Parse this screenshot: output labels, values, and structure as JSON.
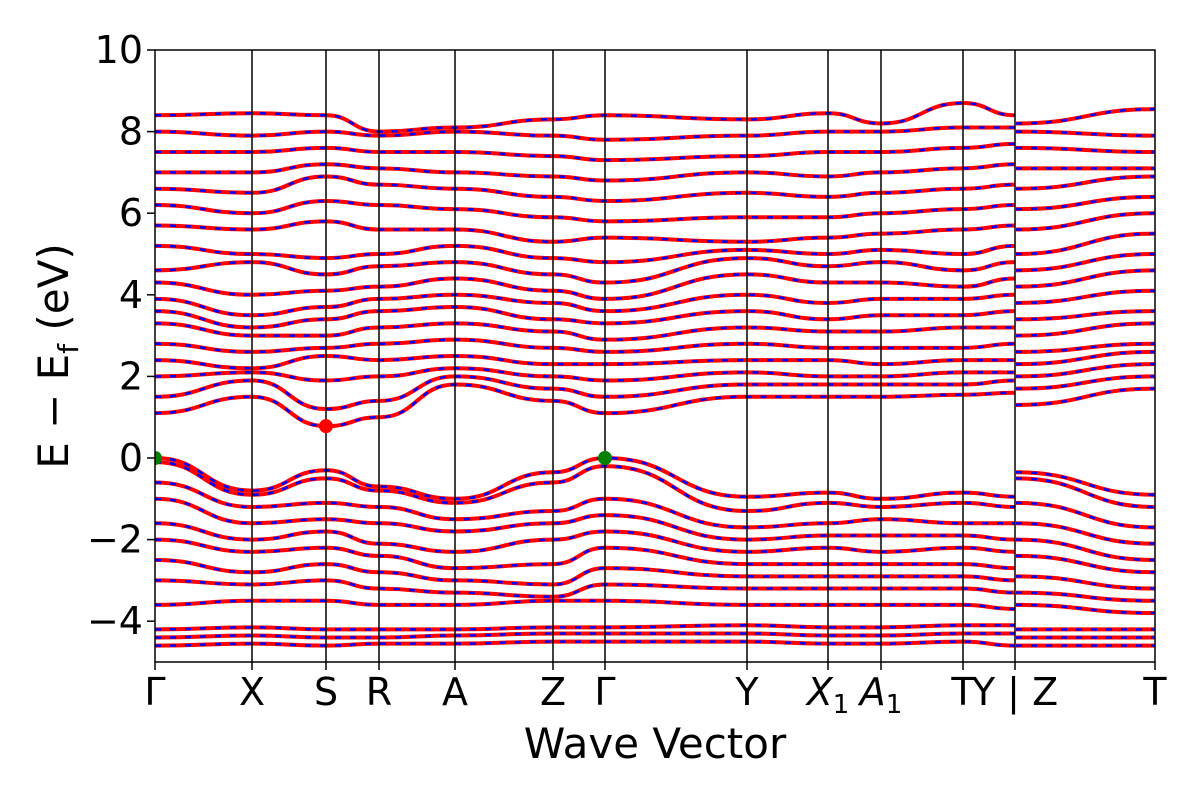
{
  "chart_data": {
    "type": "line",
    "xlabel": "Wave Vector",
    "ylabel": {
      "main": "E − E",
      "sub": "f",
      "unit": " (eV)"
    },
    "ylim": [
      -5,
      10
    ],
    "yticks": [
      {
        "value": 10,
        "label": "10"
      },
      {
        "value": 8,
        "label": "8"
      },
      {
        "value": 6,
        "label": "6"
      },
      {
        "value": 4,
        "label": "4"
      },
      {
        "value": 2,
        "label": "2"
      },
      {
        "value": 0,
        "label": "0"
      },
      {
        "value": -2,
        "label": "−2"
      },
      {
        "value": -4,
        "label": "−4"
      }
    ],
    "xlim": [
      0,
      10
    ],
    "kpoints": [
      {
        "x": 0.0,
        "label": "Γ"
      },
      {
        "x": 0.97,
        "label": "X"
      },
      {
        "x": 1.71,
        "label": "S"
      },
      {
        "x": 2.24,
        "label": "R"
      },
      {
        "x": 3.0,
        "label": "A"
      },
      {
        "x": 3.98,
        "label": "Z"
      },
      {
        "x": 4.5,
        "label": "Γ"
      },
      {
        "x": 5.92,
        "label": "Y"
      },
      {
        "x": 6.73,
        "label": "X",
        "sub": "1"
      },
      {
        "x": 7.26,
        "label": "A",
        "sub": "1"
      },
      {
        "x": 8.08,
        "label": "T"
      },
      {
        "x": 8.6,
        "label": "Y | Z"
      },
      {
        "x": 10.0,
        "label": "T"
      }
    ],
    "colors": {
      "spin_up": "#ff0000",
      "spin_down": "#0000ff",
      "extrema": "#008000",
      "cbm": "#ff0000"
    },
    "extrema": [
      {
        "name": "vbm-1",
        "x": 0.0,
        "y": 0.0,
        "color": "#008000"
      },
      {
        "name": "vbm-2",
        "x": 4.5,
        "y": 0.0,
        "color": "#008000"
      },
      {
        "name": "cbm",
        "x": 1.71,
        "y": 0.78,
        "color": "#ff0000"
      }
    ],
    "series": [
      {
        "x": [
          0,
          0.97,
          1.71,
          2.24,
          3.0,
          3.98,
          4.5,
          5.92,
          6.73,
          7.26,
          8.08,
          8.6,
          8.61,
          10
        ],
        "values": [
          0.0,
          -0.8,
          -0.3,
          -0.7,
          -1.0,
          -0.35,
          0.0,
          -0.95,
          -0.85,
          -1.0,
          -0.85,
          -0.95,
          -0.35,
          -0.9
        ]
      },
      {
        "x": [
          0,
          0.97,
          1.71,
          2.24,
          3.0,
          3.98,
          4.5,
          5.92,
          6.73,
          7.26,
          8.08,
          8.6,
          8.61,
          10
        ],
        "values": [
          -0.1,
          -0.9,
          -0.5,
          -0.8,
          -1.1,
          -0.6,
          -0.2,
          -1.3,
          -1.1,
          -1.2,
          -1.1,
          -1.2,
          -0.5,
          -1.2
        ]
      },
      {
        "x": [
          0,
          0.97,
          1.71,
          2.24,
          3.0,
          3.98,
          4.5,
          5.92,
          6.73,
          7.26,
          8.08,
          8.6,
          8.61,
          10
        ],
        "values": [
          -0.6,
          -1.2,
          -1.1,
          -1.2,
          -1.5,
          -1.3,
          -1.0,
          -1.7,
          -1.6,
          -1.5,
          -1.6,
          -1.6,
          -1.1,
          -1.7
        ]
      },
      {
        "x": [
          0,
          0.97,
          1.71,
          2.24,
          3.0,
          3.98,
          4.5,
          5.92,
          6.73,
          7.26,
          8.08,
          8.6,
          8.61,
          10
        ],
        "values": [
          -1.0,
          -1.6,
          -1.5,
          -1.6,
          -1.8,
          -1.6,
          -1.4,
          -2.0,
          -1.9,
          -1.9,
          -1.9,
          -2.0,
          -1.6,
          -2.1
        ]
      },
      {
        "x": [
          0,
          0.97,
          1.71,
          2.24,
          3.0,
          3.98,
          4.5,
          5.92,
          6.73,
          7.26,
          8.08,
          8.6,
          8.61,
          10
        ],
        "values": [
          -1.6,
          -2.0,
          -1.8,
          -2.1,
          -2.3,
          -2.0,
          -1.8,
          -2.3,
          -2.2,
          -2.3,
          -2.2,
          -2.3,
          -2.0,
          -2.5
        ]
      },
      {
        "x": [
          0,
          0.97,
          1.71,
          2.24,
          3.0,
          3.98,
          4.5,
          5.92,
          6.73,
          7.26,
          8.08,
          8.6,
          8.61,
          10
        ],
        "values": [
          -2.0,
          -2.3,
          -2.2,
          -2.4,
          -2.7,
          -2.6,
          -2.2,
          -2.6,
          -2.6,
          -2.6,
          -2.6,
          -2.7,
          -2.4,
          -2.8
        ]
      },
      {
        "x": [
          0,
          0.97,
          1.71,
          2.24,
          3.0,
          3.98,
          4.5,
          5.92,
          6.73,
          7.26,
          8.08,
          8.6,
          8.61,
          10
        ],
        "values": [
          -2.5,
          -2.8,
          -2.6,
          -2.8,
          -3.0,
          -3.1,
          -2.7,
          -2.9,
          -2.9,
          -2.9,
          -2.9,
          -3.0,
          -2.9,
          -3.2
        ]
      },
      {
        "x": [
          0,
          0.97,
          1.71,
          2.24,
          3.0,
          3.98,
          4.5,
          5.92,
          6.73,
          7.26,
          8.08,
          8.6,
          8.61,
          10
        ],
        "values": [
          -3.0,
          -3.1,
          -3.0,
          -3.2,
          -3.3,
          -3.4,
          -3.1,
          -3.2,
          -3.2,
          -3.2,
          -3.2,
          -3.3,
          -3.3,
          -3.5
        ]
      },
      {
        "x": [
          0,
          0.97,
          1.71,
          2.24,
          3.0,
          3.98,
          4.5,
          5.92,
          6.73,
          7.26,
          8.08,
          8.6,
          8.61,
          10
        ],
        "values": [
          -3.6,
          -3.5,
          -3.5,
          -3.6,
          -3.6,
          -3.5,
          -3.5,
          -3.6,
          -3.6,
          -3.6,
          -3.6,
          -3.7,
          -3.6,
          -3.8
        ]
      },
      {
        "x": [
          0,
          0.97,
          1.71,
          2.24,
          3.0,
          3.98,
          4.5,
          5.92,
          6.73,
          7.26,
          8.08,
          8.6,
          8.61,
          10
        ],
        "values": [
          -4.2,
          -4.15,
          -4.2,
          -4.2,
          -4.2,
          -4.15,
          -4.15,
          -4.1,
          -4.15,
          -4.15,
          -4.1,
          -4.1,
          -4.2,
          -4.2
        ]
      },
      {
        "x": [
          0,
          0.97,
          1.71,
          2.24,
          3.0,
          3.98,
          4.5,
          5.92,
          6.73,
          7.26,
          8.08,
          8.6,
          8.61,
          10
        ],
        "values": [
          -4.4,
          -4.35,
          -4.4,
          -4.4,
          -4.35,
          -4.3,
          -4.3,
          -4.3,
          -4.35,
          -4.35,
          -4.3,
          -4.3,
          -4.4,
          -4.4
        ]
      },
      {
        "x": [
          0,
          0.97,
          1.71,
          2.24,
          3.0,
          3.98,
          4.5,
          5.92,
          6.73,
          7.26,
          8.08,
          8.6,
          8.61,
          10
        ],
        "values": [
          -4.6,
          -4.55,
          -4.6,
          -4.55,
          -4.55,
          -4.5,
          -4.5,
          -4.5,
          -4.55,
          -4.55,
          -4.5,
          -4.6,
          -4.6,
          -4.6
        ]
      },
      {
        "x": [
          0,
          0.97,
          1.71,
          2.24,
          3.0,
          3.98,
          4.5,
          5.92,
          6.73,
          7.26,
          8.08,
          8.6,
          8.61,
          10
        ],
        "values": [
          1.1,
          1.5,
          0.78,
          1.0,
          1.8,
          1.4,
          1.1,
          1.5,
          1.5,
          1.5,
          1.55,
          1.6,
          1.3,
          1.7
        ]
      },
      {
        "x": [
          0,
          0.97,
          1.71,
          2.24,
          3.0,
          3.98,
          4.5,
          5.92,
          6.73,
          7.26,
          8.08,
          8.6,
          8.61,
          10
        ],
        "values": [
          1.5,
          1.9,
          1.2,
          1.4,
          2.0,
          1.7,
          1.5,
          1.8,
          1.8,
          1.8,
          1.8,
          1.9,
          1.7,
          2.0
        ]
      },
      {
        "x": [
          0,
          0.97,
          1.71,
          2.24,
          3.0,
          3.98,
          4.5,
          5.92,
          6.73,
          7.26,
          8.08,
          8.6,
          8.61,
          10
        ],
        "values": [
          2.0,
          2.1,
          1.9,
          2.0,
          2.2,
          2.0,
          1.9,
          2.1,
          2.0,
          2.0,
          2.1,
          2.1,
          2.0,
          2.3
        ]
      },
      {
        "x": [
          0,
          0.97,
          1.71,
          2.24,
          3.0,
          3.98,
          4.5,
          5.92,
          6.73,
          7.26,
          8.08,
          8.6,
          8.61,
          10
        ],
        "values": [
          2.4,
          2.2,
          2.5,
          2.4,
          2.5,
          2.3,
          2.3,
          2.4,
          2.4,
          2.3,
          2.4,
          2.4,
          2.3,
          2.6
        ]
      },
      {
        "x": [
          0,
          0.97,
          1.71,
          2.24,
          3.0,
          3.98,
          4.5,
          5.92,
          6.73,
          7.26,
          8.08,
          8.6,
          8.61,
          10
        ],
        "values": [
          2.8,
          2.6,
          2.7,
          2.8,
          2.9,
          2.7,
          2.6,
          2.8,
          2.7,
          2.7,
          2.7,
          2.8,
          2.6,
          2.8
        ]
      },
      {
        "x": [
          0,
          0.97,
          1.71,
          2.24,
          3.0,
          3.98,
          4.5,
          5.92,
          6.73,
          7.26,
          8.08,
          8.6,
          8.61,
          10
        ],
        "values": [
          3.3,
          3.0,
          3.0,
          3.2,
          3.3,
          3.1,
          2.9,
          3.2,
          3.1,
          3.1,
          3.2,
          3.2,
          3.0,
          3.3
        ]
      },
      {
        "x": [
          0,
          0.97,
          1.71,
          2.24,
          3.0,
          3.98,
          4.5,
          5.92,
          6.73,
          7.26,
          8.08,
          8.6,
          8.61,
          10
        ],
        "values": [
          3.6,
          3.2,
          3.4,
          3.6,
          3.7,
          3.4,
          3.3,
          3.6,
          3.4,
          3.5,
          3.5,
          3.6,
          3.4,
          3.6
        ]
      },
      {
        "x": [
          0,
          0.97,
          1.71,
          2.24,
          3.0,
          3.98,
          4.5,
          5.92,
          6.73,
          7.26,
          8.08,
          8.6,
          8.61,
          10
        ],
        "values": [
          3.9,
          3.5,
          3.7,
          3.9,
          4.0,
          3.8,
          3.6,
          4.0,
          3.8,
          3.9,
          3.9,
          4.0,
          3.8,
          4.1
        ]
      },
      {
        "x": [
          0,
          0.97,
          1.71,
          2.24,
          3.0,
          3.98,
          4.5,
          5.92,
          6.73,
          7.26,
          8.08,
          8.6,
          8.61,
          10
        ],
        "values": [
          4.3,
          4.0,
          4.1,
          4.2,
          4.4,
          4.1,
          3.9,
          4.5,
          4.3,
          4.3,
          4.2,
          4.4,
          4.2,
          4.6
        ]
      },
      {
        "x": [
          0,
          0.97,
          1.71,
          2.24,
          3.0,
          3.98,
          4.5,
          5.92,
          6.73,
          7.26,
          8.08,
          8.6,
          8.61,
          10
        ],
        "values": [
          4.6,
          4.8,
          4.5,
          4.7,
          4.8,
          4.5,
          4.3,
          4.9,
          4.7,
          4.8,
          4.6,
          4.8,
          4.6,
          5.0
        ]
      },
      {
        "x": [
          0,
          0.97,
          1.71,
          2.24,
          3.0,
          3.98,
          4.5,
          5.92,
          6.73,
          7.26,
          8.08,
          8.6,
          8.61,
          10
        ],
        "values": [
          5.2,
          5.0,
          4.9,
          5.0,
          5.2,
          4.9,
          4.8,
          5.1,
          5.0,
          5.1,
          5.0,
          5.2,
          5.0,
          5.5
        ]
      },
      {
        "x": [
          0,
          0.97,
          1.71,
          2.24,
          3.0,
          3.98,
          4.5,
          5.92,
          6.73,
          7.26,
          8.08,
          8.6,
          8.61,
          10
        ],
        "values": [
          5.7,
          5.6,
          5.8,
          5.6,
          5.6,
          5.3,
          5.4,
          5.3,
          5.4,
          5.5,
          5.6,
          5.7,
          5.6,
          6.0
        ]
      },
      {
        "x": [
          0,
          0.97,
          1.71,
          2.24,
          3.0,
          3.98,
          4.5,
          5.92,
          6.73,
          7.26,
          8.08,
          8.6,
          8.61,
          10
        ],
        "values": [
          6.2,
          6.0,
          6.3,
          6.2,
          6.1,
          5.9,
          5.8,
          5.9,
          5.9,
          6.0,
          6.1,
          6.2,
          6.1,
          6.4
        ]
      },
      {
        "x": [
          0,
          0.97,
          1.71,
          2.24,
          3.0,
          3.98,
          4.5,
          5.92,
          6.73,
          7.26,
          8.08,
          8.6,
          8.61,
          10
        ],
        "values": [
          6.6,
          6.5,
          6.9,
          6.7,
          6.6,
          6.4,
          6.3,
          6.5,
          6.4,
          6.5,
          6.6,
          6.7,
          6.6,
          6.9
        ]
      },
      {
        "x": [
          0,
          0.97,
          1.71,
          2.24,
          3.0,
          3.98,
          4.5,
          5.92,
          6.73,
          7.26,
          8.08,
          8.6,
          8.61,
          10
        ],
        "values": [
          7.0,
          7.0,
          7.2,
          7.1,
          7.0,
          6.9,
          6.8,
          7.0,
          6.9,
          7.0,
          7.1,
          7.2,
          7.1,
          7.1
        ]
      },
      {
        "x": [
          0,
          0.97,
          1.71,
          2.24,
          3.0,
          3.98,
          4.5,
          5.92,
          6.73,
          7.26,
          8.08,
          8.6,
          8.61,
          10
        ],
        "values": [
          7.5,
          7.5,
          7.6,
          7.5,
          7.5,
          7.4,
          7.3,
          7.4,
          7.5,
          7.5,
          7.6,
          7.7,
          7.6,
          7.5
        ]
      },
      {
        "x": [
          0,
          0.97,
          1.71,
          2.24,
          3.0,
          3.98,
          4.5,
          5.92,
          6.73,
          7.26,
          8.08,
          8.6,
          8.61,
          10
        ],
        "values": [
          8.0,
          7.9,
          8.0,
          7.9,
          8.0,
          7.9,
          7.8,
          7.9,
          8.0,
          8.0,
          8.1,
          8.1,
          8.0,
          7.9
        ]
      },
      {
        "x": [
          0,
          0.97,
          1.71,
          2.24,
          3.0,
          3.98,
          4.5,
          5.92,
          6.73,
          7.26,
          8.08,
          8.6,
          8.61,
          10
        ],
        "values": [
          8.4,
          8.45,
          8.4,
          8.0,
          8.1,
          8.3,
          8.4,
          8.3,
          8.45,
          8.2,
          8.7,
          8.4,
          8.2,
          8.55
        ]
      }
    ]
  }
}
